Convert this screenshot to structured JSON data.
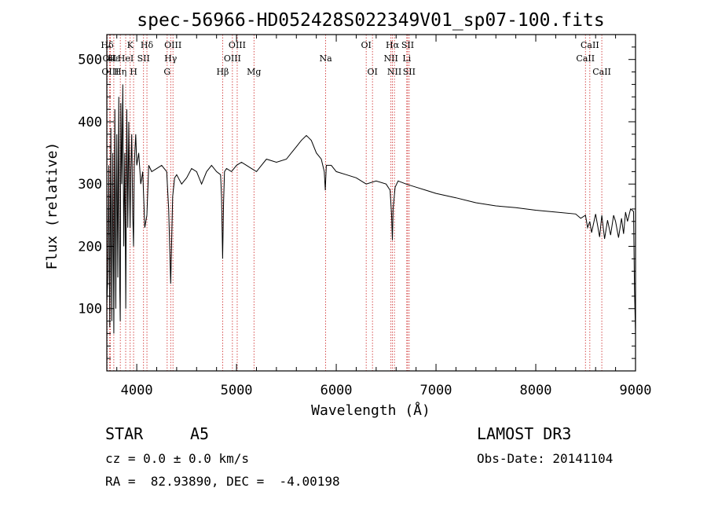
{
  "chart_data": {
    "type": "line",
    "title": "spec-56966-HD052428S022349V01_sp07-100.fits",
    "xlabel": "Wavelength (Å)",
    "ylabel": "Flux (relative)",
    "xlim": [
      3700,
      9000
    ],
    "ylim": [
      0,
      540
    ],
    "xticks": [
      4000,
      5000,
      6000,
      7000,
      8000,
      9000
    ],
    "yticks": [
      100,
      200,
      300,
      400,
      500
    ],
    "grid": false,
    "series": [
      {
        "name": "spectrum",
        "x": [
          3700,
          3710,
          3720,
          3730,
          3740,
          3750,
          3760,
          3770,
          3780,
          3790,
          3800,
          3810,
          3820,
          3830,
          3835,
          3840,
          3850,
          3860,
          3870,
          3880,
          3890,
          3900,
          3910,
          3920,
          3933,
          3940,
          3950,
          3960,
          3968,
          3975,
          3990,
          4000,
          4020,
          4040,
          4060,
          4080,
          4102,
          4120,
          4150,
          4200,
          4250,
          4300,
          4320,
          4340,
          4360,
          4380,
          4400,
          4450,
          4500,
          4550,
          4600,
          4650,
          4700,
          4750,
          4800,
          4840,
          4850,
          4861,
          4870,
          4880,
          4900,
          4950,
          5000,
          5050,
          5100,
          5150,
          5200,
          5250,
          5300,
          5400,
          5500,
          5550,
          5600,
          5650,
          5700,
          5720,
          5750,
          5800,
          5850,
          5880,
          5890,
          5900,
          5950,
          6000,
          6100,
          6200,
          6300,
          6400,
          6500,
          6540,
          6555,
          6563,
          6570,
          6590,
          6620,
          6700,
          6800,
          6900,
          7000,
          7200,
          7400,
          7600,
          7800,
          8000,
          8200,
          8400,
          8450,
          8498,
          8520,
          8542,
          8560,
          8600,
          8640,
          8662,
          8690,
          8720,
          8750,
          8780,
          8800,
          8830,
          8860,
          8880,
          8900,
          8920,
          8950,
          8980,
          8990,
          9000
        ],
        "values": [
          110,
          150,
          330,
          70,
          390,
          80,
          350,
          60,
          420,
          100,
          380,
          150,
          440,
          130,
          80,
          430,
          300,
          460,
          200,
          350,
          100,
          420,
          230,
          400,
          230,
          320,
          380,
          250,
          200,
          330,
          380,
          330,
          350,
          300,
          320,
          230,
          250,
          330,
          320,
          325,
          330,
          320,
          260,
          140,
          280,
          310,
          315,
          300,
          310,
          325,
          320,
          300,
          320,
          330,
          320,
          315,
          280,
          180,
          270,
          320,
          325,
          320,
          330,
          335,
          330,
          325,
          320,
          330,
          340,
          335,
          340,
          350,
          360,
          370,
          378,
          375,
          370,
          350,
          340,
          320,
          290,
          330,
          330,
          320,
          315,
          310,
          300,
          305,
          300,
          290,
          250,
          210,
          260,
          295,
          305,
          300,
          295,
          290,
          285,
          278,
          270,
          265,
          262,
          258,
          255,
          252,
          245,
          250,
          230,
          240,
          222,
          252,
          215,
          250,
          212,
          242,
          218,
          250,
          240,
          214,
          245,
          220,
          255,
          240,
          260,
          256,
          130,
          60
        ]
      }
    ],
    "lines": [
      {
        "label": "Hδ",
        "x": 3704,
        "row": 0
      },
      {
        "label": "OII",
        "x": 3726,
        "row": 1
      },
      {
        "label": "OIII",
        "x": 3735,
        "row": 2
      },
      {
        "label": "Hε",
        "x": 3770,
        "row": 1
      },
      {
        "label": "Hη",
        "x": 3835,
        "row": 2
      },
      {
        "label": "HeI",
        "x": 3889,
        "row": 1
      },
      {
        "label": "K",
        "x": 3934,
        "row": 0
      },
      {
        "label": "H",
        "x": 3968,
        "row": 2
      },
      {
        "label": "SII",
        "x": 4068,
        "row": 1
      },
      {
        "label": "Hδ",
        "x": 4102,
        "row": 0
      },
      {
        "label": "G",
        "x": 4305,
        "row": 2
      },
      {
        "label": "Hγ",
        "x": 4340,
        "row": 1
      },
      {
        "label": "OIII",
        "x": 4363,
        "row": 0
      },
      {
        "label": "Hβ",
        "x": 4861,
        "row": 2
      },
      {
        "label": "OIII",
        "x": 4959,
        "row": 1
      },
      {
        "label": "OIII",
        "x": 5007,
        "row": 0
      },
      {
        "label": "Mg",
        "x": 5175,
        "row": 2
      },
      {
        "label": "Na",
        "x": 5894,
        "row": 1
      },
      {
        "label": "OI",
        "x": 6300,
        "row": 0
      },
      {
        "label": "OI",
        "x": 6363,
        "row": 2
      },
      {
        "label": "NII",
        "x": 6548,
        "row": 1
      },
      {
        "label": "Hα",
        "x": 6563,
        "row": 0
      },
      {
        "label": "NII",
        "x": 6583,
        "row": 2
      },
      {
        "label": "Li",
        "x": 6707,
        "row": 1
      },
      {
        "label": "SII",
        "x": 6716,
        "row": 0
      },
      {
        "label": "SII",
        "x": 6731,
        "row": 2
      },
      {
        "label": "CaII",
        "x": 8498,
        "row": 1
      },
      {
        "label": "CaII",
        "x": 8542,
        "row": 0
      },
      {
        "label": "CaII",
        "x": 8662,
        "row": 2
      }
    ]
  },
  "info": {
    "object_type": "STAR",
    "subclass": "A5",
    "survey": "LAMOST DR3",
    "cz": "cz = 0.0 ± 0.0 km/s",
    "obs_date": "Obs-Date: 20141104",
    "coords": "RA =  82.93890, DEC =  -4.00198"
  },
  "colors": {
    "line_marker": "#cc2222",
    "spectrum": "#000000",
    "axes": "#000000"
  }
}
